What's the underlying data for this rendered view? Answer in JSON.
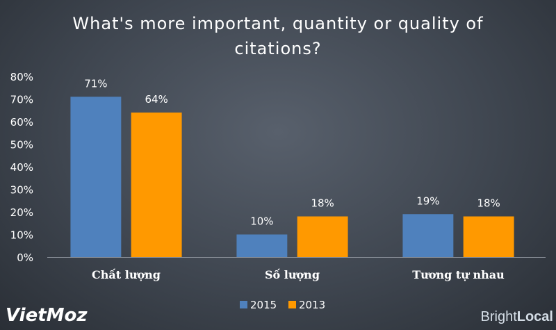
{
  "chart_data": {
    "type": "bar",
    "title": "What's more important, quantity or quality of citations?",
    "title_lines": [
      "What's more important, quantity or quality of",
      "citations?"
    ],
    "categories": [
      "Chất lượng",
      "Số lượng",
      "Tương tự nhau"
    ],
    "series": [
      {
        "name": "2015",
        "values": [
          71,
          10,
          19
        ],
        "labels": [
          "71%",
          "10%",
          "19%"
        ],
        "color": "#4f81bd"
      },
      {
        "name": "2013",
        "values": [
          64,
          18,
          18
        ],
        "labels": [
          "64%",
          "18%",
          "18%"
        ],
        "color": "#ff9900"
      }
    ],
    "ylim": [
      0,
      80
    ],
    "yticks": [
      0,
      10,
      20,
      30,
      40,
      50,
      60,
      70,
      80
    ],
    "ytick_labels": [
      "0%",
      "10%",
      "20%",
      "30%",
      "40%",
      "50%",
      "60%",
      "70%",
      "80%"
    ],
    "grid": false,
    "legend_position": "bottom"
  },
  "branding": {
    "left_logo": "VietMoz",
    "right_logo_part1": "Bright",
    "right_logo_part2": "Local",
    "left_logo_color": "#ffffff",
    "right_logo_color": "#d4dde6"
  }
}
